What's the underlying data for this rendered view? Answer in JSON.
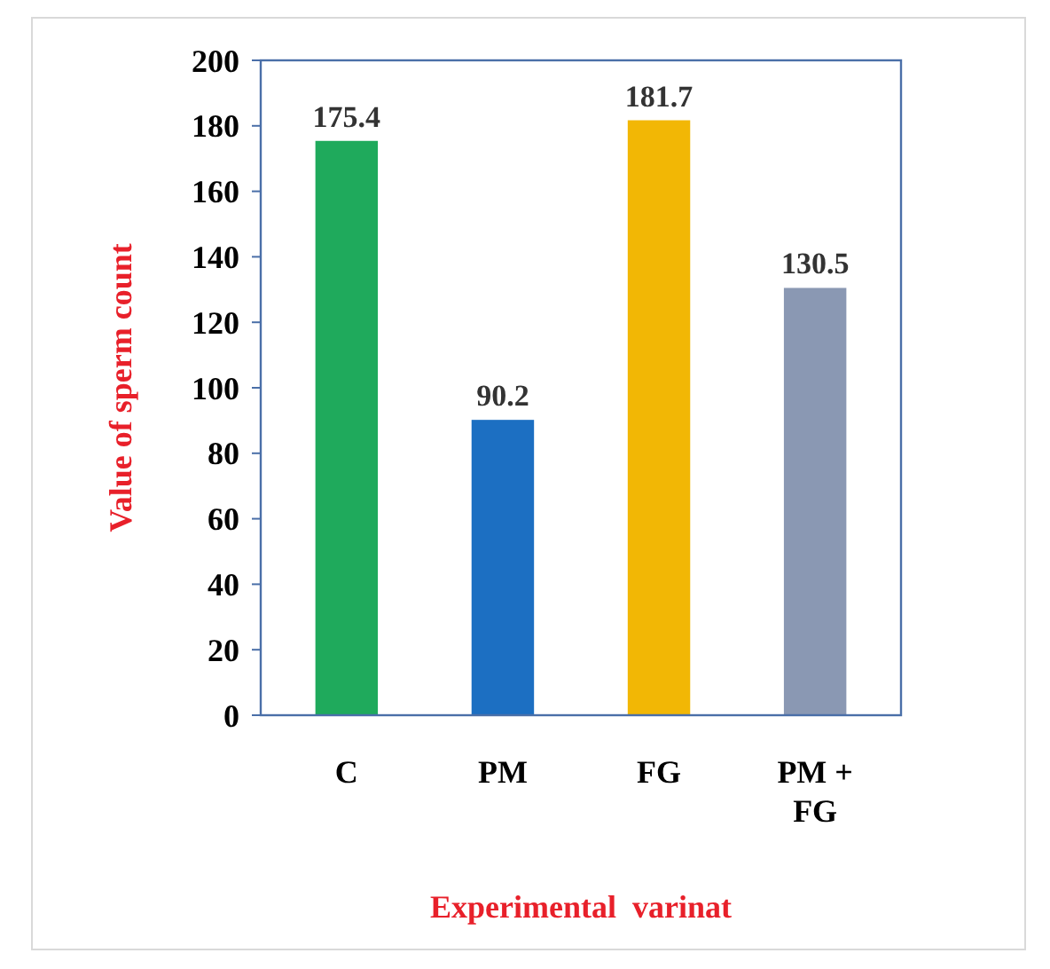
{
  "chart_data": {
    "type": "bar",
    "xlabel": "Experimental  varinat",
    "ylabel": "Value of sperm count",
    "categories": [
      "C",
      "PM",
      "FG",
      "PM + FG"
    ],
    "values": [
      175.4,
      90.2,
      181.7,
      130.5
    ],
    "colors": [
      "#1faa5c",
      "#1c6fc2",
      "#f2b705",
      "#8a98b3"
    ],
    "ylim": [
      0,
      200
    ],
    "yticks": [
      0,
      20,
      40,
      60,
      80,
      100,
      120,
      140,
      160,
      180,
      200
    ],
    "data_labels": true,
    "grid": false
  }
}
